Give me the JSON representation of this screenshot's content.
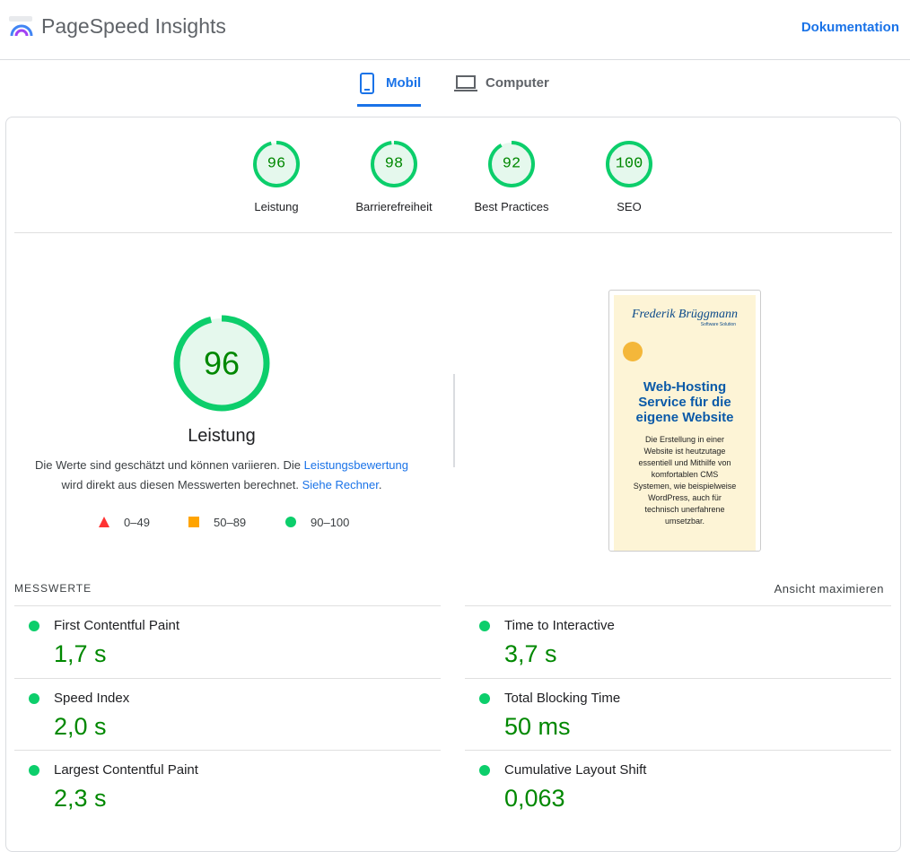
{
  "header": {
    "title": "PageSpeed Insights",
    "link": "Dokumentation"
  },
  "tabs": [
    {
      "label": "Mobil",
      "active": true
    },
    {
      "label": "Computer",
      "active": false
    }
  ],
  "categories": [
    {
      "label": "Leistung",
      "score": 96
    },
    {
      "label": "Barrierefreiheit",
      "score": 98
    },
    {
      "label": "Best Practices",
      "score": 92
    },
    {
      "label": "SEO",
      "score": 100
    }
  ],
  "performance": {
    "score": 96,
    "label": "Leistung",
    "note_1": "Die Werte sind geschätzt und können variieren. Die",
    "note_link_1": "Leistungsbewertung",
    "note_2": "wird direkt aus diesen Messwerten berechnet.",
    "note_link_2": "Siehe Rechner",
    "note_end": ".",
    "legend": [
      "0–49",
      "50–89",
      "90–100"
    ]
  },
  "screenshot": {
    "brand": "Frederik Brüggmann",
    "tagline": "Software Solution",
    "heading": [
      "Web-Hosting",
      "Service für die",
      "eigene Website"
    ],
    "body": [
      "Die Erstellung in einer",
      "Website ist heutzutage",
      "essentiell und Mithilfe von",
      "komfortablen CMS",
      "Systemen, wie beispielweise",
      "WordPress, auch für",
      "technisch unerfahrene",
      "umsetzbar."
    ]
  },
  "metrics": {
    "title": "MESSWERTE",
    "toggle": "Ansicht maximieren",
    "items": [
      {
        "label": "First Contentful Paint",
        "value": "1,7 s"
      },
      {
        "label": "Time to Interactive",
        "value": "3,7 s"
      },
      {
        "label": "Speed Index",
        "value": "2,0 s"
      },
      {
        "label": "Total Blocking Time",
        "value": "50 ms"
      },
      {
        "label": "Largest Contentful Paint",
        "value": "2,3 s"
      },
      {
        "label": "Cumulative Layout Shift",
        "value": "0,063"
      }
    ]
  }
}
